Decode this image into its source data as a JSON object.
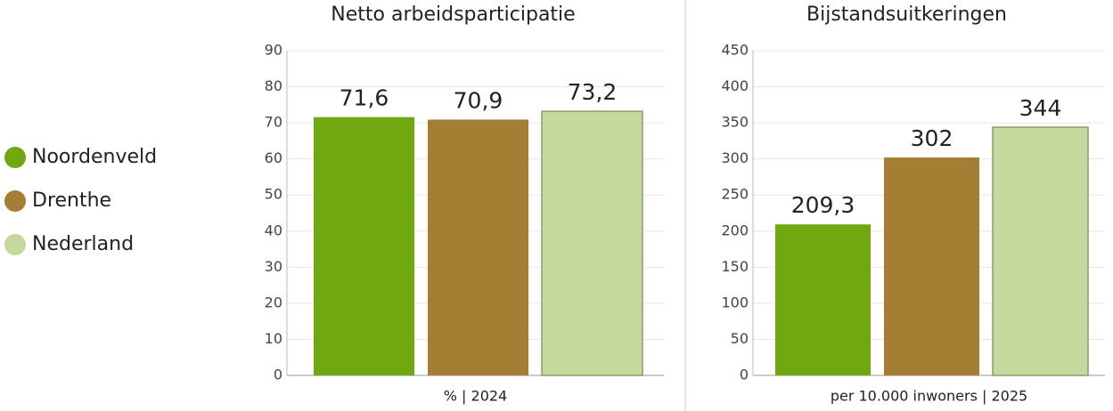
{
  "legend": [
    {
      "name": "Noordenveld",
      "color": "#6fa80f"
    },
    {
      "name": "Drenthe",
      "color": "#a57e33"
    },
    {
      "name": "Nederland",
      "color": "#c4d99b"
    }
  ],
  "chart_data": [
    {
      "type": "bar",
      "title": "Netto arbeidsparticipatie",
      "x_label": "% | 2024",
      "series": [
        {
          "values": [
            71.6
          ],
          "value_labels": [
            "71,6"
          ]
        },
        {
          "values": [
            70.9
          ],
          "value_labels": [
            "70,9"
          ]
        },
        {
          "values": [
            73.2
          ],
          "value_labels": [
            "73,2"
          ]
        }
      ],
      "ylim": [
        0,
        90
      ],
      "yticks": [
        0,
        10,
        20,
        30,
        40,
        50,
        60,
        70,
        80,
        90
      ],
      "grid": true
    },
    {
      "type": "bar",
      "title": "Bijstandsuitkeringen",
      "x_label": "per 10.000 inwoners | 2025",
      "series": [
        {
          "values": [
            209.3
          ],
          "value_labels": [
            "209,3"
          ]
        },
        {
          "values": [
            302
          ],
          "value_labels": [
            "302"
          ]
        },
        {
          "values": [
            344
          ],
          "value_labels": [
            "344"
          ]
        }
      ],
      "ylim": [
        0,
        450
      ],
      "yticks": [
        0,
        50,
        100,
        150,
        200,
        250,
        300,
        350,
        400,
        450
      ],
      "grid": true
    }
  ]
}
